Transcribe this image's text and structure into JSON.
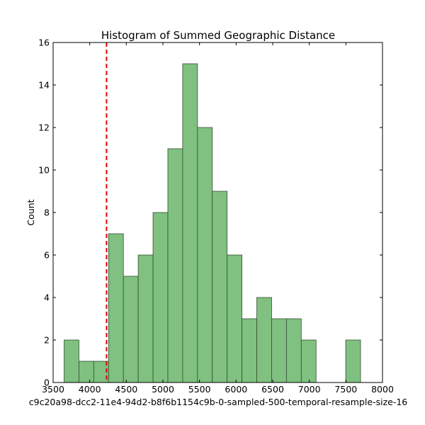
{
  "chart_data": {
    "type": "bar",
    "subtype": "histogram",
    "title": "Histogram of Summed Geographic Distance",
    "xlabel": "c9c20a98-dcc2-11e4-94d2-b8f6b1154c9b-0-sampled-500-temporal-resample-size-16",
    "ylabel": "Count",
    "xlim": [
      3500,
      8000
    ],
    "ylim": [
      0,
      16
    ],
    "xticks": [
      3500,
      4000,
      4500,
      5000,
      5500,
      6000,
      6500,
      7000,
      7500,
      8000
    ],
    "yticks": [
      0,
      2,
      4,
      6,
      8,
      10,
      12,
      14,
      16
    ],
    "bin_edges": [
      3650,
      3852.5,
      4055,
      4257.5,
      4460,
      4662.5,
      4865,
      5067.5,
      5270,
      5472.5,
      5675,
      5877.5,
      6080,
      6282.5,
      6485,
      6687.5,
      6890,
      7092.5,
      7295,
      7497.5,
      7700
    ],
    "counts": [
      2,
      1,
      1,
      7,
      5,
      6,
      8,
      11,
      15,
      12,
      9,
      6,
      3,
      4,
      3,
      3,
      2,
      0,
      0,
      2
    ],
    "reference_line_x": 4230,
    "colors": {
      "bar_fill": "#80c080",
      "bar_edge": "#2f4f2f",
      "reference_line": "#e00000"
    },
    "grid": false,
    "legend": "none"
  }
}
